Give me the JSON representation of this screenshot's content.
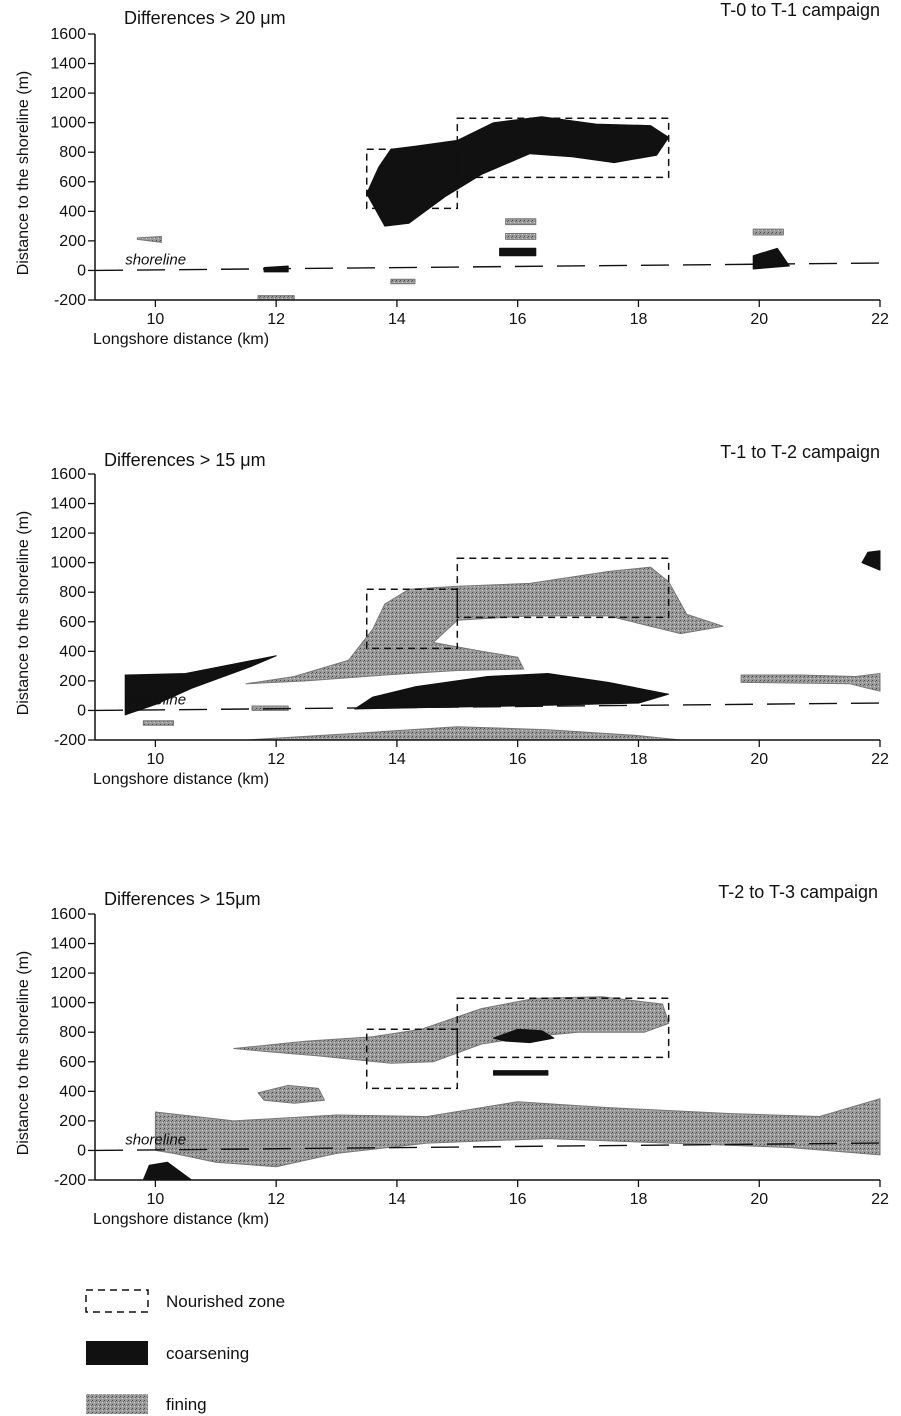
{
  "colors": {
    "coarsening": "#111111",
    "fining": "#9a9a9a",
    "axis": "#111111"
  },
  "chart_data": [
    {
      "type": "contour",
      "corner_label": "T-0 to T-1 campaign",
      "threshold_label": "Differences > 20 μm",
      "xlabel": "Longshore distance (km)",
      "ylabel": "Distance to the shoreline (m)",
      "xlim": [
        9,
        22
      ],
      "ylim": [
        -200,
        1600
      ],
      "x_ticks": [
        10,
        12,
        14,
        16,
        18,
        20,
        22
      ],
      "y_ticks": [
        -200,
        0,
        200,
        400,
        600,
        800,
        1000,
        1200,
        1400,
        1600
      ],
      "shoreline_label": "shoreline",
      "shoreline": [
        [
          9,
          0
        ],
        [
          22,
          50
        ]
      ],
      "nourished_zones": [
        [
          13.5,
          15.0,
          420,
          820
        ],
        [
          15.0,
          18.5,
          630,
          1030
        ]
      ],
      "regions": [
        {
          "type": "coarsening",
          "points": [
            [
              13.5,
              520
            ],
            [
              13.8,
              300
            ],
            [
              14.2,
              320
            ],
            [
              14.8,
              500
            ],
            [
              15.4,
              650
            ],
            [
              16.2,
              790
            ],
            [
              16.9,
              770
            ],
            [
              17.6,
              730
            ],
            [
              18.3,
              780
            ],
            [
              18.5,
              900
            ],
            [
              18.2,
              980
            ],
            [
              17.3,
              990
            ],
            [
              16.4,
              1040
            ],
            [
              15.6,
              1000
            ],
            [
              15.0,
              880
            ],
            [
              14.3,
              840
            ],
            [
              13.9,
              820
            ],
            [
              13.7,
              700
            ]
          ]
        },
        {
          "type": "coarsening",
          "points": [
            [
              11.8,
              20
            ],
            [
              12.2,
              30
            ],
            [
              12.2,
              -10
            ],
            [
              11.8,
              -10
            ]
          ]
        },
        {
          "type": "coarsening",
          "points": [
            [
              15.7,
              100
            ],
            [
              16.3,
              100
            ],
            [
              16.3,
              150
            ],
            [
              15.7,
              150
            ]
          ]
        },
        {
          "type": "coarsening",
          "points": [
            [
              19.9,
              10
            ],
            [
              20.5,
              30
            ],
            [
              20.3,
              150
            ],
            [
              19.9,
              100
            ]
          ]
        },
        {
          "type": "fining",
          "points": [
            [
              9.7,
              210
            ],
            [
              10.1,
              190
            ],
            [
              10.1,
              230
            ],
            [
              9.7,
              220
            ]
          ]
        },
        {
          "type": "fining",
          "points": [
            [
              15.8,
              310
            ],
            [
              16.3,
              310
            ],
            [
              16.3,
              350
            ],
            [
              15.8,
              350
            ]
          ]
        },
        {
          "type": "fining",
          "points": [
            [
              15.8,
              210
            ],
            [
              16.3,
              210
            ],
            [
              16.3,
              250
            ],
            [
              15.8,
              250
            ]
          ]
        },
        {
          "type": "fining",
          "points": [
            [
              13.9,
              -90
            ],
            [
              14.3,
              -90
            ],
            [
              14.3,
              -60
            ],
            [
              13.9,
              -60
            ]
          ]
        },
        {
          "type": "fining",
          "points": [
            [
              11.7,
              -200
            ],
            [
              12.3,
              -200
            ],
            [
              12.3,
              -170
            ],
            [
              11.7,
              -170
            ]
          ]
        },
        {
          "type": "fining",
          "points": [
            [
              19.9,
              240
            ],
            [
              20.4,
              240
            ],
            [
              20.4,
              280
            ],
            [
              19.9,
              280
            ]
          ]
        }
      ]
    },
    {
      "type": "contour",
      "corner_label": "T-1 to T-2 campaign",
      "threshold_label": "Differences > 15 μm",
      "xlabel": "Longshore distance (km)",
      "ylabel": "Distance to the shoreline (m)",
      "xlim": [
        9,
        22
      ],
      "ylim": [
        -200,
        1600
      ],
      "x_ticks": [
        10,
        12,
        14,
        16,
        18,
        20,
        22
      ],
      "y_ticks": [
        -200,
        0,
        200,
        400,
        600,
        800,
        1000,
        1200,
        1400,
        1600
      ],
      "shoreline_label": "shoreline",
      "shoreline": [
        [
          9,
          0
        ],
        [
          22,
          50
        ]
      ],
      "nourished_zones": [
        [
          13.5,
          15.0,
          420,
          820
        ],
        [
          15.0,
          18.5,
          630,
          1030
        ]
      ],
      "regions": [
        {
          "type": "coarsening",
          "points": [
            [
              9.5,
              -30
            ],
            [
              9.5,
              240
            ],
            [
              10.5,
              250
            ],
            [
              12.0,
              370
            ],
            [
              11.6,
              300
            ],
            [
              10.6,
              150
            ],
            [
              10.0,
              40
            ]
          ]
        },
        {
          "type": "coarsening",
          "points": [
            [
              13.3,
              10
            ],
            [
              14.5,
              20
            ],
            [
              16.0,
              30
            ],
            [
              18.0,
              50
            ],
            [
              18.5,
              110
            ],
            [
              17.5,
              190
            ],
            [
              16.5,
              250
            ],
            [
              15.5,
              230
            ],
            [
              14.3,
              160
            ],
            [
              13.6,
              90
            ]
          ]
        },
        {
          "type": "coarsening",
          "points": [
            [
              21.7,
              1000
            ],
            [
              22,
              950
            ],
            [
              22,
              1080
            ],
            [
              21.8,
              1070
            ]
          ]
        },
        {
          "type": "fining",
          "points": [
            [
              11.5,
              180
            ],
            [
              12.3,
              230
            ],
            [
              13.2,
              340
            ],
            [
              13.6,
              550
            ],
            [
              13.8,
              720
            ],
            [
              14.2,
              820
            ],
            [
              15.0,
              840
            ],
            [
              16.2,
              860
            ],
            [
              17.5,
              940
            ],
            [
              18.2,
              970
            ],
            [
              18.5,
              870
            ],
            [
              18.8,
              650
            ],
            [
              19.4,
              570
            ],
            [
              18.7,
              520
            ],
            [
              17.5,
              640
            ],
            [
              16.2,
              640
            ],
            [
              15.0,
              610
            ],
            [
              14.6,
              460
            ],
            [
              15.4,
              400
            ],
            [
              16.0,
              360
            ],
            [
              16.1,
              280
            ],
            [
              15.0,
              270
            ],
            [
              13.8,
              240
            ],
            [
              12.5,
              200
            ]
          ]
        },
        {
          "type": "fining",
          "points": [
            [
              11.5,
              -200
            ],
            [
              13.5,
              -150
            ],
            [
              15.0,
              -110
            ],
            [
              16.5,
              -130
            ],
            [
              18.0,
              -170
            ],
            [
              18.7,
              -200
            ]
          ]
        },
        {
          "type": "fining",
          "points": [
            [
              9.8,
              -70
            ],
            [
              10.3,
              -70
            ],
            [
              10.3,
              -100
            ],
            [
              9.8,
              -100
            ]
          ]
        },
        {
          "type": "fining",
          "points": [
            [
              11.6,
              0
            ],
            [
              12.2,
              0
            ],
            [
              12.2,
              30
            ],
            [
              11.6,
              30
            ]
          ]
        },
        {
          "type": "fining",
          "points": [
            [
              19.7,
              190
            ],
            [
              21.5,
              180
            ],
            [
              21.8,
              150
            ],
            [
              22,
              130
            ],
            [
              22,
              250
            ],
            [
              21.6,
              230
            ],
            [
              20.7,
              240
            ],
            [
              19.7,
              240
            ]
          ]
        }
      ]
    },
    {
      "type": "contour",
      "corner_label": "T-2 to T-3 campaign",
      "threshold_label": "Differences > 15μm",
      "xlabel": "Longshore distance (km)",
      "ylabel": "Distance to the shoreline (m)",
      "xlim": [
        9,
        22
      ],
      "ylim": [
        -200,
        1600
      ],
      "x_ticks": [
        10,
        12,
        14,
        16,
        18,
        20,
        22
      ],
      "y_ticks": [
        -200,
        0,
        200,
        400,
        600,
        800,
        1000,
        1200,
        1400,
        1600
      ],
      "shoreline_label": "shoreline",
      "shoreline": [
        [
          9,
          0
        ],
        [
          22,
          50
        ]
      ],
      "nourished_zones": [
        [
          13.5,
          15.0,
          420,
          820
        ],
        [
          15.0,
          18.5,
          630,
          1030
        ]
      ],
      "regions": [
        {
          "type": "fining",
          "points": [
            [
              11.3,
              690
            ],
            [
              12.5,
              740
            ],
            [
              13.6,
              770
            ],
            [
              14.4,
              820
            ],
            [
              15.4,
              960
            ],
            [
              16.3,
              1030
            ],
            [
              17.4,
              1040
            ],
            [
              18.4,
              990
            ],
            [
              18.5,
              860
            ],
            [
              18.1,
              800
            ],
            [
              17.0,
              800
            ],
            [
              16.2,
              770
            ],
            [
              15.4,
              720
            ],
            [
              14.6,
              600
            ],
            [
              13.9,
              590
            ],
            [
              12.7,
              640
            ],
            [
              11.8,
              670
            ]
          ]
        },
        {
          "type": "fining",
          "points": [
            [
              11.7,
              390
            ],
            [
              12.2,
              440
            ],
            [
              12.7,
              420
            ],
            [
              12.8,
              340
            ],
            [
              12.3,
              320
            ],
            [
              11.8,
              340
            ]
          ]
        },
        {
          "type": "fining",
          "points": [
            [
              10.0,
              0
            ],
            [
              10.0,
              260
            ],
            [
              11.3,
              200
            ],
            [
              13.0,
              240
            ],
            [
              14.5,
              230
            ],
            [
              16.0,
              330
            ],
            [
              17.5,
              290
            ],
            [
              19.5,
              250
            ],
            [
              21.0,
              230
            ],
            [
              22,
              350
            ],
            [
              22,
              -30
            ],
            [
              20.5,
              20
            ],
            [
              18.5,
              50
            ],
            [
              16.5,
              80
            ],
            [
              14.5,
              50
            ],
            [
              13.0,
              -20
            ],
            [
              12.0,
              -110
            ],
            [
              11.0,
              -80
            ],
            [
              10.3,
              -20
            ]
          ]
        },
        {
          "type": "coarsening",
          "points": [
            [
              15.6,
              760
            ],
            [
              16.0,
              820
            ],
            [
              16.4,
              810
            ],
            [
              16.6,
              760
            ],
            [
              16.2,
              730
            ],
            [
              15.8,
              740
            ]
          ]
        },
        {
          "type": "coarsening",
          "points": [
            [
              15.6,
              510
            ],
            [
              16.5,
              510
            ],
            [
              16.5,
              540
            ],
            [
              15.6,
              540
            ]
          ]
        },
        {
          "type": "coarsening",
          "points": [
            [
              9.8,
              -200
            ],
            [
              9.9,
              -100
            ],
            [
              10.2,
              -80
            ],
            [
              10.6,
              -200
            ]
          ]
        }
      ]
    }
  ],
  "legend": {
    "items": [
      {
        "label": "Nourished zone",
        "symbol": "dashed-box"
      },
      {
        "label": "coarsening",
        "symbol": "coarsening"
      },
      {
        "label": "fining",
        "symbol": "fining"
      }
    ]
  }
}
